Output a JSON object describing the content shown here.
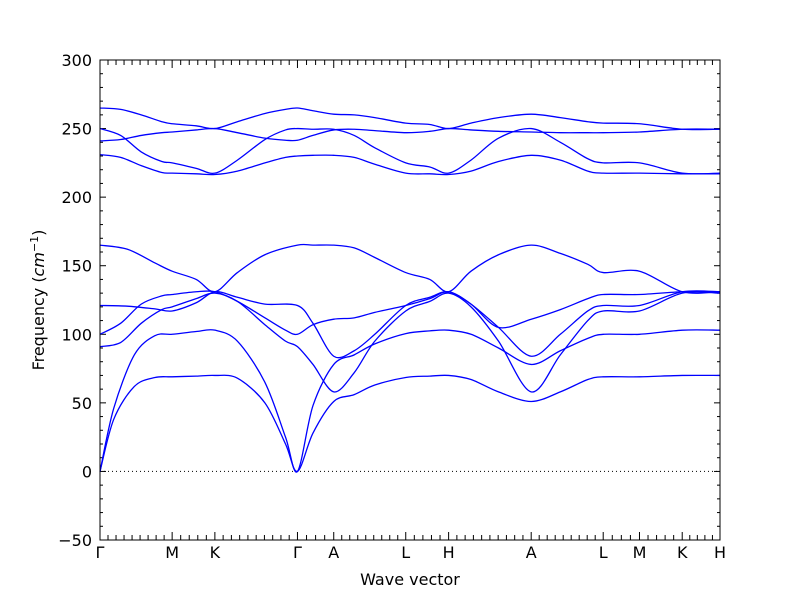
{
  "chart_data": {
    "type": "line",
    "xlabel": "Wave vector",
    "ylabel": "Frequency",
    "ylabel_unit_base": "cm",
    "ylabel_unit_exp": "−1",
    "ylim": [
      -50,
      300
    ],
    "xlim": [
      0,
      4.512
    ],
    "yticks": [
      -50,
      0,
      50,
      100,
      150,
      200,
      250,
      300
    ],
    "ytick_labels": [
      "−50",
      "0",
      "50",
      "100",
      "150",
      "200",
      "250",
      "300"
    ],
    "high_symmetry_points": [
      {
        "label": "Γ",
        "x": 0.0
      },
      {
        "label": "M",
        "x": 0.525
      },
      {
        "label": "K",
        "x": 0.836
      },
      {
        "label": "Γ",
        "x": 1.437
      },
      {
        "label": "A",
        "x": 1.701
      },
      {
        "label": "L",
        "x": 2.225
      },
      {
        "label": "H",
        "x": 2.537
      },
      {
        "label": "A",
        "x": 3.138
      },
      {
        "label": "L",
        "x": 3.662
      },
      {
        "label": "M",
        "x": 3.926
      },
      {
        "label": "K",
        "x": 4.237
      },
      {
        "label": "H",
        "x": 4.512
      }
    ],
    "zero_line": true,
    "series": [
      {
        "x": [
          0,
          0.1,
          0.25,
          0.4,
          0.525,
          0.7,
          0.836,
          1.0,
          1.2,
          1.35,
          1.437,
          1.55,
          1.701,
          1.85,
          2.0,
          2.225,
          2.4,
          2.537,
          2.7,
          2.9,
          3.138,
          3.35,
          3.55,
          3.662,
          3.926,
          4.237,
          4.512
        ],
        "y": [
          0,
          38,
          62,
          68.5,
          69,
          69.5,
          70,
          68,
          50,
          20,
          0,
          28,
          51,
          56,
          63,
          68.5,
          69.5,
          70,
          67,
          58,
          51,
          58,
          67,
          69,
          69,
          70,
          70
        ]
      },
      {
        "x": [
          0,
          0.1,
          0.25,
          0.4,
          0.525,
          0.7,
          0.836,
          1.0,
          1.2,
          1.35,
          1.437,
          1.55,
          1.701,
          1.85,
          2.0,
          2.225,
          2.4,
          2.537,
          2.7,
          2.9,
          3.138,
          3.35,
          3.55,
          3.662,
          3.926,
          4.237,
          4.512
        ],
        "y": [
          0,
          46,
          85,
          99,
          100,
          102,
          103,
          95,
          65,
          25,
          0,
          48,
          78,
          85,
          93,
          100.5,
          102.5,
          103,
          100,
          90,
          78,
          88,
          97,
          100,
          100,
          103,
          103
        ]
      },
      {
        "x": [
          0,
          0.15,
          0.3,
          0.45,
          0.525,
          0.7,
          0.836,
          1.0,
          1.2,
          1.35,
          1.437,
          1.55,
          1.701,
          1.85,
          2.0,
          2.225,
          2.4,
          2.537,
          2.7,
          2.9,
          3.138,
          3.35,
          3.55,
          3.662,
          3.926,
          4.237,
          4.512
        ],
        "y": [
          91,
          94,
          108,
          118,
          120,
          126,
          130,
          124,
          107,
          95,
          91,
          78,
          58,
          72,
          95,
          117,
          124,
          130,
          120,
          95,
          58,
          85,
          110,
          117,
          117,
          130,
          130
        ]
      },
      {
        "x": [
          0,
          0.15,
          0.3,
          0.45,
          0.525,
          0.7,
          0.836,
          1.0,
          1.2,
          1.35,
          1.437,
          1.55,
          1.701,
          1.85,
          2.0,
          2.225,
          2.4,
          2.537,
          2.7,
          2.9,
          3.138,
          3.35,
          3.55,
          3.662,
          3.926,
          4.237,
          4.512
        ],
        "y": [
          100,
          108,
          122,
          128,
          129,
          131,
          131,
          124,
          112,
          103,
          100,
          107,
          111,
          112,
          116,
          121,
          126,
          131,
          122,
          105,
          84,
          100,
          117,
          121,
          121,
          131,
          131
        ]
      },
      {
        "x": [
          0,
          0.2,
          0.4,
          0.525,
          0.7,
          0.836,
          1.0,
          1.2,
          1.437,
          1.55,
          1.701,
          1.85,
          2.0,
          2.225,
          2.4,
          2.537,
          2.7,
          2.9,
          3.138,
          3.35,
          3.55,
          3.662,
          3.926,
          4.237,
          4.512
        ],
        "y": [
          121,
          120.5,
          118.5,
          117,
          123,
          131,
          127,
          122,
          121,
          108,
          84,
          88,
          100,
          121,
          127,
          131,
          122,
          105,
          111,
          118,
          126,
          129,
          129,
          131,
          131
        ]
      },
      {
        "x": [
          0,
          0.2,
          0.4,
          0.525,
          0.7,
          0.836,
          1.0,
          1.2,
          1.437,
          1.55,
          1.701,
          1.85,
          2.0,
          2.225,
          2.4,
          2.537,
          2.7,
          2.9,
          3.138,
          3.35,
          3.55,
          3.662,
          3.926,
          4.237,
          4.512
        ],
        "y": [
          165,
          162,
          152,
          146,
          140,
          131,
          145,
          158,
          165,
          165,
          165,
          163,
          156,
          145,
          140,
          131,
          146,
          158,
          165,
          159,
          151,
          145,
          146,
          131,
          131
        ]
      },
      {
        "x": [
          0,
          0.15,
          0.3,
          0.45,
          0.525,
          0.7,
          0.836,
          1.0,
          1.2,
          1.35,
          1.437,
          1.55,
          1.701,
          1.85,
          2.0,
          2.225,
          2.4,
          2.537,
          2.7,
          2.9,
          3.138,
          3.35,
          3.55,
          3.662,
          3.926,
          4.237,
          4.512
        ],
        "y": [
          231,
          229,
          223,
          218,
          217.5,
          217,
          216.5,
          219,
          225,
          229,
          230,
          230.5,
          230.5,
          229,
          224,
          217.5,
          217,
          216.5,
          219,
          226,
          230.5,
          227,
          219,
          217.5,
          217.5,
          217,
          217
        ]
      },
      {
        "x": [
          0,
          0.15,
          0.3,
          0.45,
          0.525,
          0.7,
          0.836,
          1.0,
          1.2,
          1.35,
          1.437,
          1.55,
          1.701,
          1.85,
          2.0,
          2.225,
          2.4,
          2.537,
          2.7,
          2.9,
          3.138,
          3.35,
          3.55,
          3.662,
          3.926,
          4.237,
          4.512
        ],
        "y": [
          250,
          245,
          233,
          226,
          225,
          221,
          217.5,
          227,
          242,
          249,
          250,
          249.5,
          249.5,
          245,
          236,
          225,
          222,
          217.5,
          227,
          243,
          250,
          240,
          228,
          225,
          225,
          217.5,
          217.5
        ]
      },
      {
        "x": [
          0,
          0.15,
          0.3,
          0.45,
          0.525,
          0.7,
          0.836,
          1.0,
          1.2,
          1.35,
          1.437,
          1.55,
          1.701,
          1.85,
          2.0,
          2.225,
          2.4,
          2.537,
          2.7,
          2.9,
          3.138,
          3.35,
          3.55,
          3.662,
          3.926,
          4.237,
          4.512
        ],
        "y": [
          241,
          242,
          245,
          247,
          247.5,
          249,
          250,
          247,
          243,
          241.5,
          241.5,
          245,
          249,
          249.5,
          248.5,
          247,
          248,
          250,
          249,
          248,
          247.5,
          247,
          247,
          247,
          247.5,
          249.5,
          249.5
        ]
      },
      {
        "x": [
          0,
          0.15,
          0.3,
          0.45,
          0.525,
          0.7,
          0.836,
          1.0,
          1.2,
          1.35,
          1.437,
          1.55,
          1.701,
          1.85,
          2.0,
          2.225,
          2.4,
          2.537,
          2.7,
          2.9,
          3.138,
          3.35,
          3.55,
          3.662,
          3.926,
          4.237,
          4.512
        ],
        "y": [
          265,
          264,
          260,
          255,
          253.5,
          252,
          250,
          255,
          261,
          264,
          265,
          263,
          260.5,
          260,
          258,
          254,
          253,
          250,
          254,
          258,
          260.5,
          258,
          255,
          254,
          253.5,
          249.5,
          249.5
        ]
      }
    ]
  }
}
